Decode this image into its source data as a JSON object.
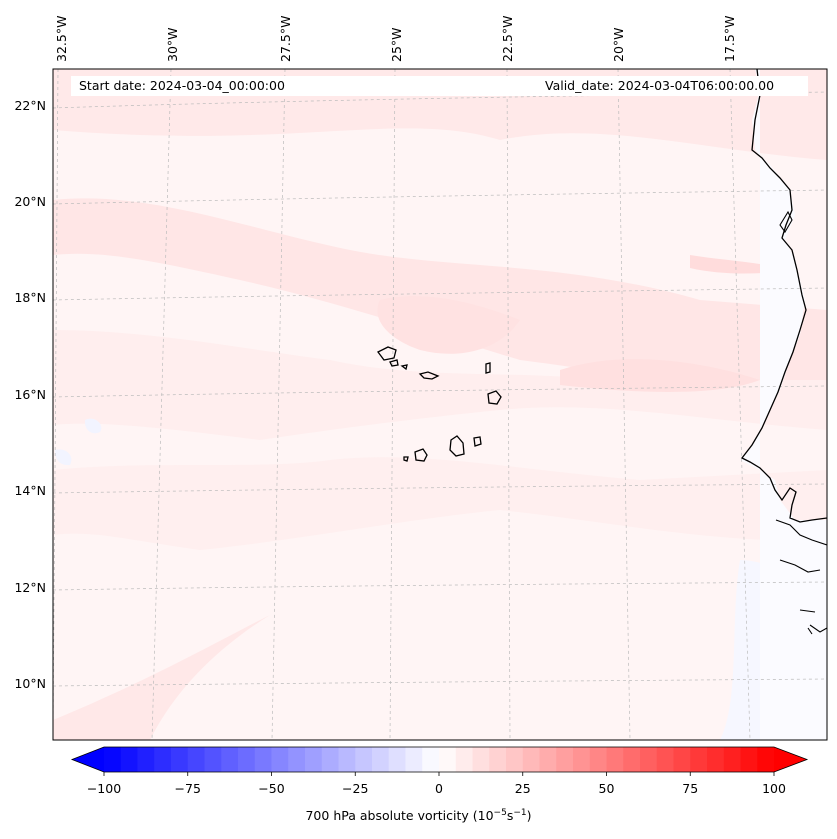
{
  "map": {
    "header": {
      "start_date": "Start date: 2024-03-04_00:00:00",
      "valid_date": "Valid_date: 2024-03-04T06:00:00.00"
    },
    "longitude_labels": [
      "32.5°W",
      "30°W",
      "27.5°W",
      "25°W",
      "22.5°W",
      "20°W",
      "17.5°W"
    ],
    "latitude_labels": [
      "22°N",
      "20°N",
      "18°N",
      "16°N",
      "14°N",
      "12°N",
      "10°N"
    ],
    "gridlines": true,
    "coastline_color": "#000000",
    "features": [
      "Cape Verde islands",
      "West African coastline"
    ]
  },
  "colorbar": {
    "label_prefix": "700 hPa absolute vorticity (10",
    "label_exp1": "−5",
    "label_mid": "s",
    "label_exp2": "−1",
    "label_suffix": ")",
    "min": -100,
    "max": 100,
    "step": 5,
    "extend": "both",
    "colormap": "bwr",
    "low_color": "#0000ff",
    "mid_color": "#ffffff",
    "high_color": "#ff0000",
    "ticks": [
      {
        "value": -100,
        "label": "−100"
      },
      {
        "value": -75,
        "label": "−75"
      },
      {
        "value": -50,
        "label": "−50"
      },
      {
        "value": -25,
        "label": "−25"
      },
      {
        "value": 0,
        "label": "0"
      },
      {
        "value": 25,
        "label": "25"
      },
      {
        "value": 50,
        "label": "50"
      },
      {
        "value": 75,
        "label": "75"
      },
      {
        "value": 100,
        "label": "100"
      }
    ]
  }
}
